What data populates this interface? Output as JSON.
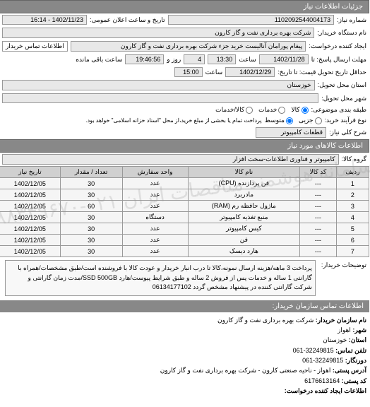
{
  "header": {
    "title": "جزئیات اطلاعات نیاز"
  },
  "request": {
    "number_label": "شماره نیاز:",
    "number_value": "1102092544004173",
    "announce_label": "تاریخ و ساعت اعلان عمومی:",
    "announce_value": "1402/11/23 - 16:14",
    "device_label": "نام دستگاه خریدار:",
    "device_value": "شرکت بهره برداری نفت و گاز کارون",
    "creator_label": "ایجاد کننده درخواست:",
    "creator_value": "پیغام پورامان آنالیست خرید جزء شرکت بهره برداری نفت و گاز کارون",
    "contact_label": "اطلاعات تماس خریدار",
    "deadline_label": "مهلت ارسال پاسخ: تا",
    "deadline_date": "1402/11/28",
    "deadline_time_label": "ساعت",
    "deadline_time": "13:30",
    "remain_days": "4",
    "remain_days_label": "روز و",
    "remain_time": "19:46:56",
    "remain_time_label": "ساعت باقی مانده",
    "min_label": "حداقل تاریخ تحویل قیمت: تا تاریخ:",
    "min_date": "1402/12/29",
    "min_time_label": "ساعت",
    "min_time": "15:00",
    "province_label": "استان محل تحویل:",
    "province_value": "خوزستان",
    "city_label": "شهر محل تحویل:",
    "entity_type_label": "طبقه بندی موضوعی:",
    "radio_kala": "کالا",
    "radio_khadamat": "خدمات",
    "radio_kala_khadamat": "کالا/خدمات",
    "process_label": "نوع فرآیند خرید:",
    "radio_jari": "جزیی",
    "radio_motavaset": "متوسط",
    "process_note": "پرداخت تمام یا بخشی از مبلغ خرید،از محل \"اسناد خزانه اسلامی\" خواهد بود.",
    "need_desc_label": "شرح کلی نیاز:",
    "need_desc_value": "قطعات کامپیوتر"
  },
  "goods_section": {
    "title": "اطلاعات کالاهای مورد نیاز",
    "group_label": "گروه کالا:",
    "group_value": "کامپیوتر و فناوری اطلاعات-سخت افزار"
  },
  "table": {
    "columns": [
      "ردیف",
      "کد کالا",
      "نام کالا",
      "واحد سفارش",
      "تعداد / مقدار",
      "تاریخ نیاز"
    ],
    "rows": [
      [
        "1",
        "---",
        "فن پردازنده (CPU)",
        "عدد",
        "30",
        "1402/12/05"
      ],
      [
        "2",
        "---",
        "مادربرد",
        "عدد",
        "30",
        "1402/12/05"
      ],
      [
        "3",
        "---",
        "ماژول حافظه رم (RAM)",
        "عدد",
        "60",
        "1402/12/05"
      ],
      [
        "4",
        "---",
        "منبع تغذیه کامپیوتر",
        "دستگاه",
        "30",
        "1402/12/05"
      ],
      [
        "5",
        "---",
        "کیس کامپیوتر",
        "عدد",
        "30",
        "1402/12/05"
      ],
      [
        "6",
        "---",
        "فن",
        "عدد",
        "30",
        "1402/12/05"
      ],
      [
        "7",
        "---",
        "هارد دیسک",
        "عدد",
        "30",
        "1402/12/05"
      ]
    ]
  },
  "notes": {
    "label": "توضیحات خریدار:",
    "text": "پرداخت 3 ماهه/هزینه ارسال نمونه،کالا تا درب انبار خریدار و عودت کالا با فروشنده است/طبق مشخصات/همراه با گارانتی 1 ساله و خدمات پس از فروش 2 ساله و طبق شرایط پیوست/هارد SSD 500GB/مدت زمان گارانتی و شرکت گارانتی کننده در پیشنهاد مشخص گردد 06134177102"
  },
  "contact": {
    "title": "اطلاعات تماس سازمان خریدار:",
    "org_label": "نام سازمان خریدار:",
    "org_value": "شرکت بهره برداری نفت و گاز کارون",
    "city_label": "شهر:",
    "city_value": "اهواز",
    "province_label": "استان:",
    "province_value": "خوزستان",
    "phone_label": "تلفن تماس:",
    "phone_value": "32249815-061",
    "fax_label": "دورنگار:",
    "fax_value": "32249815-061",
    "address_label": "آدرس پستی:",
    "address_value": "اهواز - ناحیه صنعتی کارون - شرکت بهره برداری نفت و گاز کارون",
    "postal_label": "کد پستی:",
    "postal_value": "6176613164",
    "creator_label": "اطلاعات ایجاد کننده درخواست:"
  },
  "watermark": "سامانه هوشمند مناقصات ایران ۰۲۱-۸۸۳۴۹۶۷۰"
}
